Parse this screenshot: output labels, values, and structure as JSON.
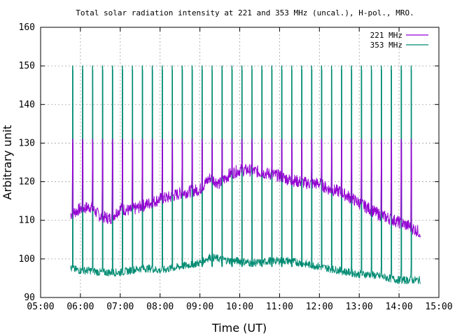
{
  "chart_data": {
    "type": "line",
    "title": "Total solar radiation intensity at 221 and 353 MHz (uncal.), H-pol., MRO.",
    "xlabel": "Time (UT)",
    "ylabel": "Arbitrary unit",
    "xlim": [
      "05:00",
      "15:00"
    ],
    "ylim": [
      90,
      160
    ],
    "x_ticks": [
      "05:00",
      "06:00",
      "07:00",
      "08:00",
      "09:00",
      "10:00",
      "11:00",
      "12:00",
      "13:00",
      "14:00",
      "15:00"
    ],
    "y_ticks": [
      90,
      100,
      110,
      120,
      130,
      140,
      150,
      160
    ],
    "grid": true,
    "legend_position": "top-right",
    "calibration_spike_interval_minutes": 15,
    "series": [
      {
        "name": "221 MHz",
        "color": "#9400d3",
        "x": [
          "05:45",
          "06:00",
          "06:15",
          "06:30",
          "06:45",
          "07:00",
          "07:15",
          "07:30",
          "07:45",
          "08:00",
          "08:15",
          "08:30",
          "08:45",
          "09:00",
          "09:15",
          "09:30",
          "09:45",
          "10:00",
          "10:15",
          "10:30",
          "10:45",
          "11:00",
          "11:15",
          "11:30",
          "11:45",
          "12:00",
          "12:15",
          "12:30",
          "12:45",
          "13:00",
          "13:15",
          "13:30",
          "13:45",
          "14:00",
          "14:15",
          "14:30"
        ],
        "values": [
          111.5,
          113,
          113.5,
          111,
          110.5,
          113,
          112.5,
          113.5,
          114.5,
          115.5,
          116,
          117,
          117.5,
          118,
          121,
          119.5,
          122,
          123,
          123,
          122.5,
          122,
          121.5,
          120.5,
          120,
          119.5,
          119.5,
          118,
          117.5,
          116,
          114.5,
          113,
          111.5,
          110.5,
          109.5,
          108.5,
          107
        ],
        "spike_peak": 131,
        "spike_base": 124
      },
      {
        "name": "353 MHz",
        "color": "#008b72",
        "x": [
          "05:45",
          "06:00",
          "06:15",
          "06:30",
          "06:45",
          "07:00",
          "07:15",
          "07:30",
          "07:45",
          "08:00",
          "08:15",
          "08:30",
          "08:45",
          "09:00",
          "09:15",
          "09:30",
          "09:45",
          "10:00",
          "10:15",
          "10:30",
          "10:45",
          "11:00",
          "11:15",
          "11:30",
          "11:45",
          "12:00",
          "12:15",
          "12:30",
          "12:45",
          "13:00",
          "13:15",
          "13:30",
          "13:45",
          "14:00",
          "14:15",
          "14:30"
        ],
        "values": [
          97.5,
          97,
          97,
          96.5,
          96.5,
          96.5,
          97,
          97.5,
          97.5,
          97,
          97.5,
          98,
          98.5,
          99,
          100.5,
          100,
          99.5,
          99.5,
          99,
          99,
          99.5,
          99.5,
          99.5,
          99,
          98.5,
          98,
          97.5,
          97,
          96.5,
          96,
          96,
          95.5,
          95,
          94.5,
          94.5,
          94.5
        ],
        "spike_peak": 150,
        "spike_base": 98
      }
    ]
  }
}
